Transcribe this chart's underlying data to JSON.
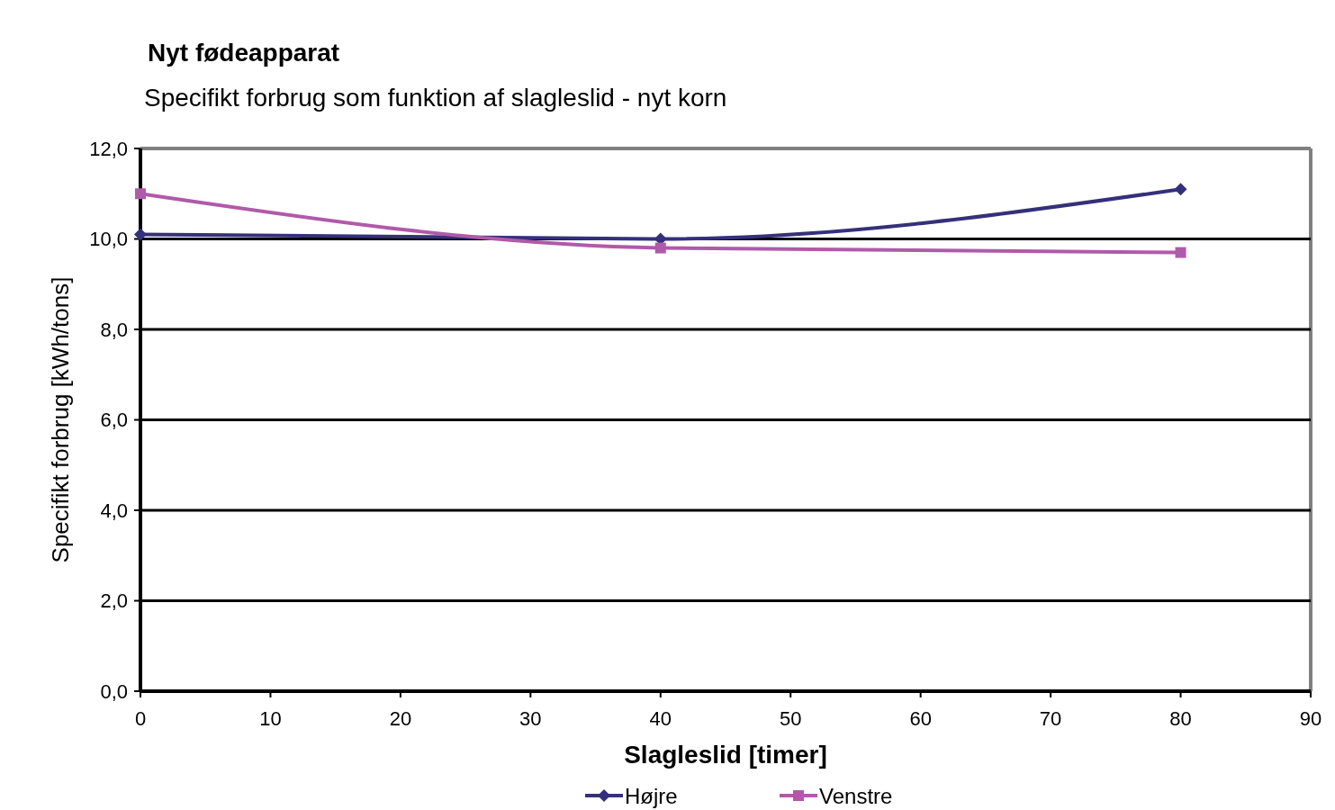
{
  "chart_data": {
    "type": "line",
    "title": "Nyt fødeapparat",
    "subtitle": "Specifikt forbrug som funktion af slagleslid - nyt korn",
    "xlabel": "Slagleslid [timer]",
    "ylabel": "Specifikt forbrug [kWh/tons]",
    "x": [
      0,
      40,
      80
    ],
    "series": [
      {
        "name": "Højre",
        "color": "#35307a",
        "marker": "diamond",
        "values": [
          10.1,
          10.0,
          11.1
        ]
      },
      {
        "name": "Venstre",
        "color": "#b05aaa",
        "marker": "square",
        "values": [
          11.0,
          9.8,
          9.7
        ]
      }
    ],
    "xlim": [
      0,
      90
    ],
    "xticks": [
      0,
      10,
      20,
      30,
      40,
      50,
      60,
      70,
      80,
      90
    ],
    "ylim": [
      0,
      12
    ],
    "yticks": [
      {
        "value": 0,
        "label": "0,0"
      },
      {
        "value": 2,
        "label": "2,0"
      },
      {
        "value": 4,
        "label": "4,0"
      },
      {
        "value": 6,
        "label": "6,0"
      },
      {
        "value": 8,
        "label": "8,0"
      },
      {
        "value": 10,
        "label": "10,0"
      },
      {
        "value": 12,
        "label": "12,0"
      }
    ],
    "grid": "y",
    "legend": "bottom",
    "line_style": "solid"
  }
}
